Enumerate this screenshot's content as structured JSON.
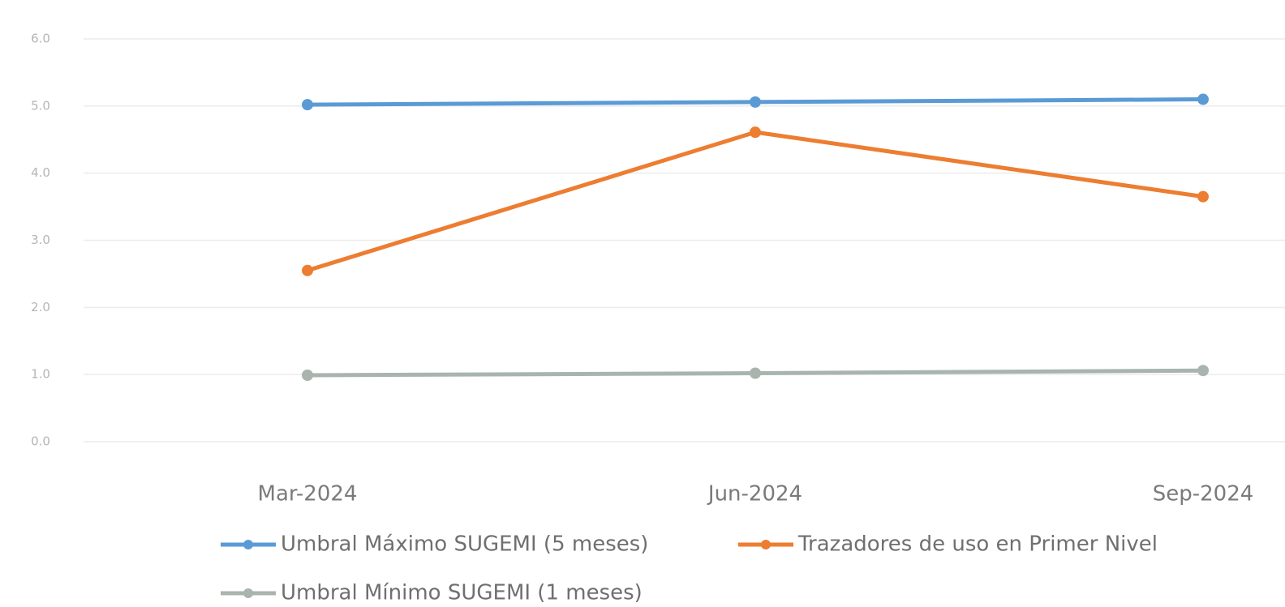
{
  "chart_data": {
    "type": "line",
    "categories": [
      "Mar-2024",
      "Jun-2024",
      "Sep-2024"
    ],
    "series": [
      {
        "name": "Umbral Máximo SUGEMI (5 meses)",
        "color": "#5b9bd5",
        "values": [
          5.02,
          5.06,
          5.1
        ]
      },
      {
        "name": "Trazadores de uso en Primer Nivel",
        "color": "#ed7d31",
        "values": [
          2.55,
          4.61,
          3.65
        ]
      },
      {
        "name": "Umbral Mínimo SUGEMI (1 meses)",
        "color": "#a9b4ae",
        "values": [
          0.99,
          1.02,
          1.06
        ]
      }
    ],
    "ylim": [
      0,
      6
    ],
    "yticks": [
      {
        "value": 0,
        "label": "0.0"
      },
      {
        "value": 1,
        "label": "1.0"
      },
      {
        "value": 2,
        "label": "2.0"
      },
      {
        "value": 3,
        "label": "3.0"
      },
      {
        "value": 4,
        "label": "4.0"
      },
      {
        "value": 5,
        "label": "5.0"
      },
      {
        "value": 6,
        "label": "6.0"
      }
    ],
    "grid": true,
    "legend": "bottom"
  }
}
